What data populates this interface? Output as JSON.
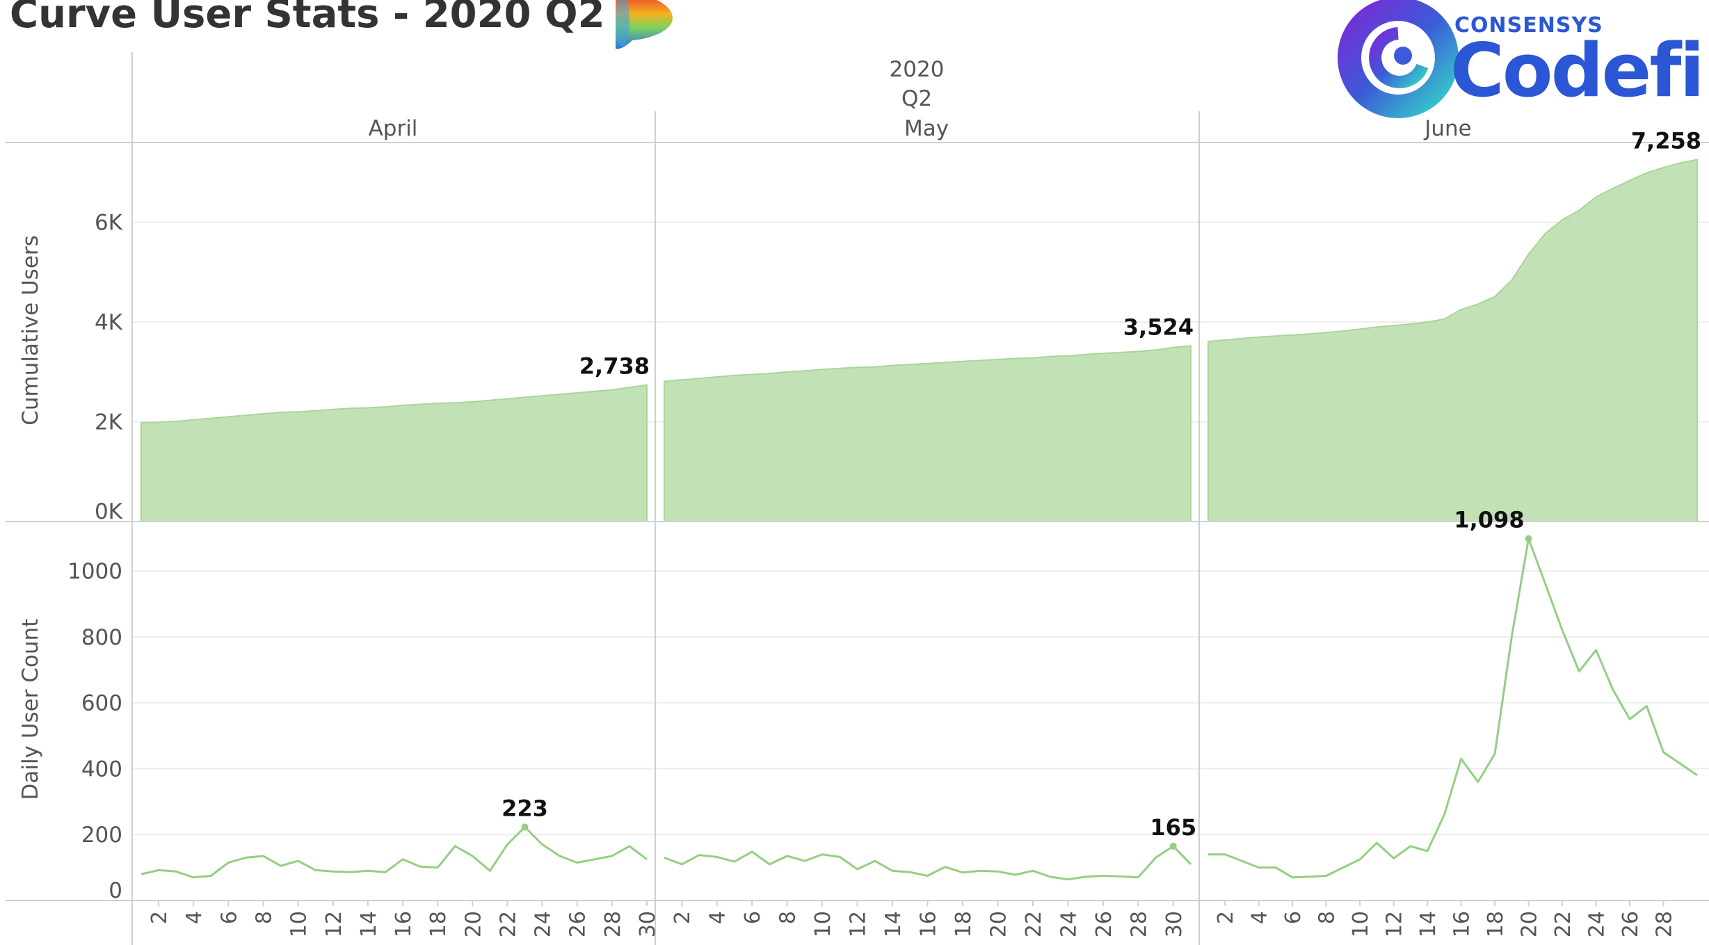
{
  "title": "Curve User Stats - 2020 Q2",
  "logo": {
    "consensys_text": "CONSENSYS",
    "codefi_text": "Codefi"
  },
  "colors": {
    "area_fill": "#c3e1b6",
    "area_stroke": "#a9d59a",
    "line": "#94cf84",
    "grid": "#ececec",
    "divider": "#cfcfcf",
    "title": "#333333",
    "label": "#555555"
  },
  "chart_data": {
    "type": "area",
    "header": {
      "year": "2020",
      "quarter": "Q2"
    },
    "months": [
      "April",
      "May",
      "June"
    ],
    "panels": [
      {
        "type": "area",
        "ylabel": "Cumulative Users",
        "ylim": [
          0,
          7600
        ],
        "yticks": [
          0,
          2000,
          4000,
          6000
        ],
        "ytick_labels": [
          "0K",
          "2K",
          "4K",
          "6K"
        ],
        "series": [
          {
            "month": "April",
            "x": [
              1,
              2,
              3,
              4,
              5,
              6,
              7,
              8,
              9,
              10,
              11,
              12,
              13,
              14,
              15,
              16,
              17,
              18,
              19,
              20,
              21,
              22,
              23,
              24,
              25,
              26,
              27,
              28,
              29,
              30
            ],
            "values": [
              1980,
              1990,
              2010,
              2040,
              2070,
              2100,
              2130,
              2160,
              2190,
              2200,
              2220,
              2250,
              2270,
              2280,
              2300,
              2330,
              2350,
              2370,
              2380,
              2400,
              2430,
              2460,
              2490,
              2520,
              2550,
              2580,
              2610,
              2640,
              2690,
              2738
            ]
          },
          {
            "month": "May",
            "x": [
              1,
              2,
              3,
              4,
              5,
              6,
              7,
              8,
              9,
              10,
              11,
              12,
              13,
              14,
              15,
              16,
              17,
              18,
              19,
              20,
              21,
              22,
              23,
              24,
              25,
              26,
              27,
              28,
              29,
              30,
              31
            ],
            "values": [
              2810,
              2840,
              2870,
              2900,
              2930,
              2950,
              2970,
              3000,
              3020,
              3050,
              3070,
              3090,
              3100,
              3130,
              3150,
              3170,
              3190,
              3210,
              3230,
              3250,
              3270,
              3280,
              3310,
              3320,
              3350,
              3370,
              3390,
              3410,
              3440,
              3490,
              3524
            ]
          },
          {
            "month": "June",
            "x": [
              1,
              2,
              3,
              4,
              5,
              6,
              7,
              8,
              9,
              10,
              11,
              12,
              13,
              14,
              15,
              16,
              17,
              18,
              19,
              20,
              21,
              22,
              23,
              24,
              25,
              26,
              27,
              28,
              29,
              30
            ],
            "values": [
              3610,
              3640,
              3670,
              3700,
              3720,
              3740,
              3760,
              3790,
              3820,
              3860,
              3900,
              3930,
              3960,
              4000,
              4060,
              4250,
              4360,
              4510,
              4840,
              5360,
              5780,
              6050,
              6240,
              6510,
              6680,
              6840,
              6990,
              7100,
              7190,
              7258
            ]
          }
        ],
        "annotations": [
          {
            "month": "April",
            "x": 30,
            "label": "2,738"
          },
          {
            "month": "May",
            "x": 31,
            "label": "3,524"
          },
          {
            "month": "June",
            "x": 30,
            "label": "7,258"
          }
        ]
      },
      {
        "type": "line",
        "ylabel": "Daily User Count",
        "ylim": [
          0,
          1150
        ],
        "yticks": [
          0,
          200,
          400,
          600,
          800,
          1000
        ],
        "ytick_labels": [
          "0",
          "200",
          "400",
          "600",
          "800",
          "1000"
        ],
        "series": [
          {
            "month": "April",
            "x": [
              1,
              2,
              3,
              4,
              5,
              6,
              7,
              8,
              9,
              10,
              11,
              12,
              13,
              14,
              15,
              16,
              17,
              18,
              19,
              20,
              21,
              22,
              23,
              24,
              25,
              26,
              27,
              28,
              29,
              30
            ],
            "values": [
              80,
              92,
              88,
              70,
              75,
              115,
              130,
              135,
              105,
              120,
              92,
              88,
              86,
              90,
              86,
              125,
              103,
              100,
              165,
              135,
              90,
              170,
              223,
              170,
              135,
              115,
              125,
              135,
              165,
              125
            ]
          },
          {
            "month": "May",
            "x": [
              1,
              2,
              3,
              4,
              5,
              6,
              7,
              8,
              9,
              10,
              11,
              12,
              13,
              14,
              15,
              16,
              17,
              18,
              19,
              20,
              21,
              22,
              23,
              24,
              25,
              26,
              27,
              28,
              29,
              30,
              31
            ],
            "values": [
              130,
              110,
              138,
              132,
              118,
              148,
              110,
              135,
              120,
              140,
              132,
              95,
              120,
              90,
              86,
              75,
              102,
              85,
              90,
              88,
              78,
              90,
              72,
              64,
              72,
              75,
              73,
              70,
              130,
              165,
              110
            ]
          },
          {
            "month": "June",
            "x": [
              1,
              2,
              3,
              4,
              5,
              6,
              7,
              8,
              9,
              10,
              11,
              12,
              13,
              14,
              15,
              16,
              17,
              18,
              19,
              20,
              21,
              22,
              23,
              24,
              25,
              26,
              27,
              28,
              29,
              30
            ],
            "values": [
              140,
              140,
              120,
              100,
              100,
              70,
              72,
              75,
              100,
              125,
              175,
              128,
              165,
              150,
              260,
              430,
              360,
              445,
              800,
              1098,
              960,
              820,
              695,
              760,
              640,
              550,
              590,
              450,
              415,
              380
            ]
          }
        ],
        "annotations": [
          {
            "month": "April",
            "x": 23,
            "label": "223"
          },
          {
            "month": "May",
            "x": 30,
            "label": "165"
          },
          {
            "month": "June",
            "x": 20,
            "label": "1,098"
          }
        ]
      }
    ],
    "xtick_labels": {
      "April": [
        "2",
        "4",
        "6",
        "8",
        "10",
        "12",
        "14",
        "16",
        "18",
        "20",
        "22",
        "24",
        "26",
        "28",
        "30"
      ],
      "May": [
        "2",
        "4",
        "6",
        "8",
        "10",
        "12",
        "14",
        "16",
        "18",
        "20",
        "22",
        "24",
        "26",
        "28",
        "30"
      ],
      "June": [
        "2",
        "4",
        "6",
        "8",
        "10",
        "12",
        "14",
        "16",
        "18",
        "20",
        "22",
        "24",
        "26",
        "28"
      ]
    },
    "grid": true,
    "legend": "none"
  }
}
